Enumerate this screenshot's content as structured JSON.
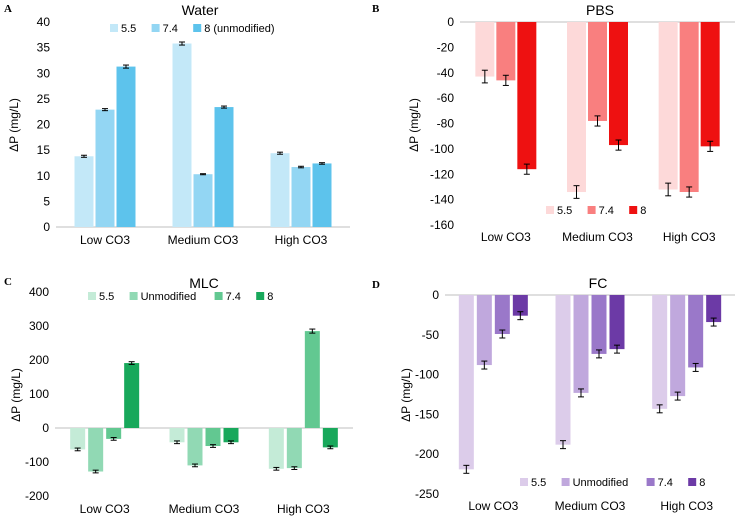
{
  "chart_data": [
    {
      "panel": "A",
      "type": "bar",
      "title": "Water",
      "ylabel": "ΔP (mg/L)",
      "xlabel": "",
      "ylim": [
        0,
        40
      ],
      "yticks": [
        0,
        5,
        10,
        15,
        20,
        25,
        30,
        35,
        40
      ],
      "categories": [
        "Low CO3",
        "Medium CO3",
        "High CO3"
      ],
      "legend_position": "top-center",
      "series": [
        {
          "name": "5.5",
          "color": "#c3e8f8",
          "values": [
            13.8,
            35.8,
            14.4
          ],
          "errors": [
            0.2,
            0.3,
            0.2
          ]
        },
        {
          "name": "7.4",
          "color": "#93d6f3",
          "values": [
            22.9,
            10.3,
            11.7
          ],
          "errors": [
            0.2,
            0.1,
            0.15
          ]
        },
        {
          "name": "8 (unmodified)",
          "color": "#5dc3ec",
          "values": [
            31.3,
            23.4,
            12.4
          ],
          "errors": [
            0.3,
            0.2,
            0.15
          ]
        }
      ]
    },
    {
      "panel": "B",
      "type": "bar",
      "title": "PBS",
      "ylabel": "ΔP (mg/L)",
      "xlabel": "",
      "ylim": [
        -160,
        0
      ],
      "yticks": [
        0,
        -20,
        -40,
        -60,
        -80,
        -100,
        -120,
        -140,
        -160
      ],
      "categories": [
        "Low CO3",
        "Medium CO3",
        "High CO3"
      ],
      "legend_position": "bottom-center",
      "series": [
        {
          "name": "5.5",
          "color": "#fdd9d9",
          "values": [
            -43,
            -134,
            -132
          ],
          "errors": [
            5,
            5,
            5
          ]
        },
        {
          "name": "7.4",
          "color": "#f97f7f",
          "values": [
            -46,
            -78,
            -134
          ],
          "errors": [
            4,
            4,
            4
          ]
        },
        {
          "name": "8",
          "color": "#ee1111",
          "values": [
            -116,
            -97,
            -98
          ],
          "errors": [
            4,
            4,
            4
          ]
        }
      ]
    },
    {
      "panel": "C",
      "type": "bar",
      "title": "MLC",
      "ylabel": "ΔP (mg/L)",
      "xlabel": "",
      "ylim": [
        -200,
        400
      ],
      "yticks": [
        400,
        300,
        200,
        100,
        0,
        -100,
        -200
      ],
      "categories": [
        "Low CO3",
        "Medium CO3",
        "High CO3"
      ],
      "legend_position": "top-center",
      "series": [
        {
          "name": "5.5",
          "color": "#c4ebd7",
          "values": [
            -63,
            -42,
            -120
          ],
          "errors": [
            4,
            4,
            4
          ]
        },
        {
          "name": "Unmodified",
          "color": "#91d9b4",
          "values": [
            -128,
            -110,
            -118
          ],
          "errors": [
            4,
            4,
            4
          ]
        },
        {
          "name": "7.4",
          "color": "#62c891",
          "values": [
            -32,
            -53,
            285
          ],
          "errors": [
            4,
            4,
            6
          ]
        },
        {
          "name": "8",
          "color": "#18a85b",
          "values": [
            191,
            -42,
            -57
          ],
          "errors": [
            4,
            4,
            4
          ]
        }
      ]
    },
    {
      "panel": "D",
      "type": "bar",
      "title": "FC",
      "ylabel": "ΔP (mg/L)",
      "xlabel": "",
      "ylim": [
        -250,
        0
      ],
      "yticks": [
        0,
        -50,
        -100,
        -150,
        -200,
        -250
      ],
      "categories": [
        "Low CO3",
        "Medium CO3",
        "High CO3"
      ],
      "legend_position": "bottom-center",
      "series": [
        {
          "name": "5.5",
          "color": "#dcccea",
          "values": [
            -219,
            -188,
            -143
          ],
          "errors": [
            5,
            5,
            5
          ]
        },
        {
          "name": "Unmodified",
          "color": "#c0a8dd",
          "values": [
            -88,
            -123,
            -127
          ],
          "errors": [
            5,
            5,
            5
          ]
        },
        {
          "name": "7.4",
          "color": "#9a78c9",
          "values": [
            -49,
            -74,
            -91
          ],
          "errors": [
            5,
            5,
            5
          ]
        },
        {
          "name": "8",
          "color": "#6c3aa6",
          "values": [
            -26,
            -68,
            -34
          ],
          "errors": [
            5,
            5,
            5
          ]
        }
      ]
    }
  ]
}
